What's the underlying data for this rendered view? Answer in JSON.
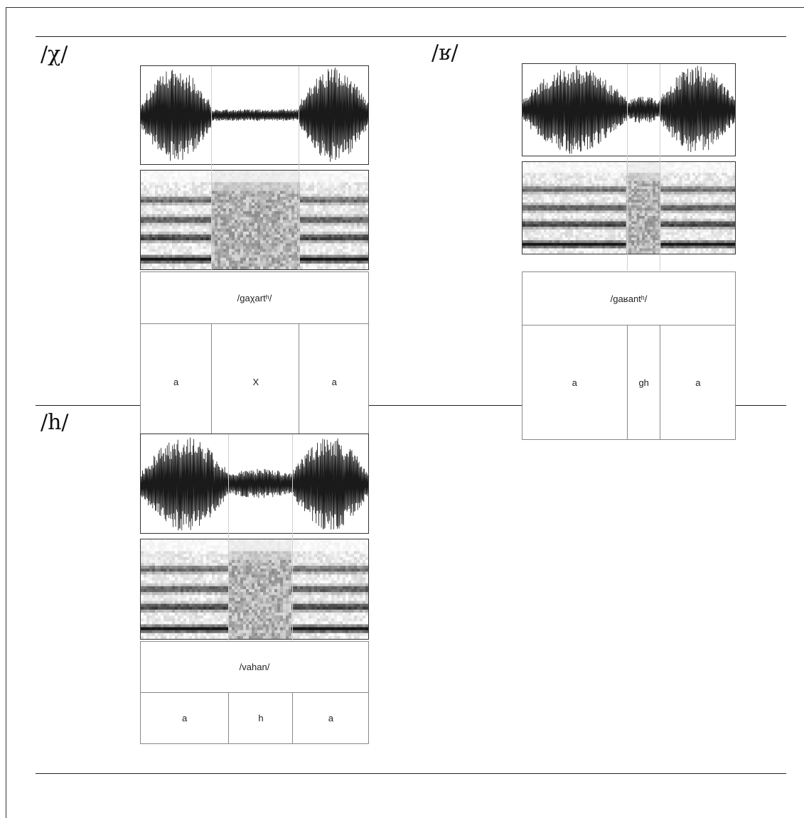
{
  "figure": {
    "panels": [
      {
        "id": "chi",
        "label": "/χ/",
        "word": "/gaχartʰ/",
        "segments": [
          {
            "text": "a",
            "dur": 0.31
          },
          {
            "text": "X",
            "dur": 0.385
          },
          {
            "text": "a",
            "dur": 0.305
          }
        ]
      },
      {
        "id": "ghain",
        "label": "/ʁ/",
        "word": "/gaʁantʰ/",
        "segments": [
          {
            "text": "a",
            "dur": 0.49
          },
          {
            "text": "gh",
            "dur": 0.155
          },
          {
            "text": "a",
            "dur": 0.355
          }
        ]
      },
      {
        "id": "h",
        "label": "/h/",
        "word": "/vahan/",
        "segments": [
          {
            "text": "a",
            "dur": 0.385
          },
          {
            "text": "h",
            "dur": 0.28
          },
          {
            "text": "a",
            "dur": 0.335
          }
        ]
      }
    ]
  }
}
